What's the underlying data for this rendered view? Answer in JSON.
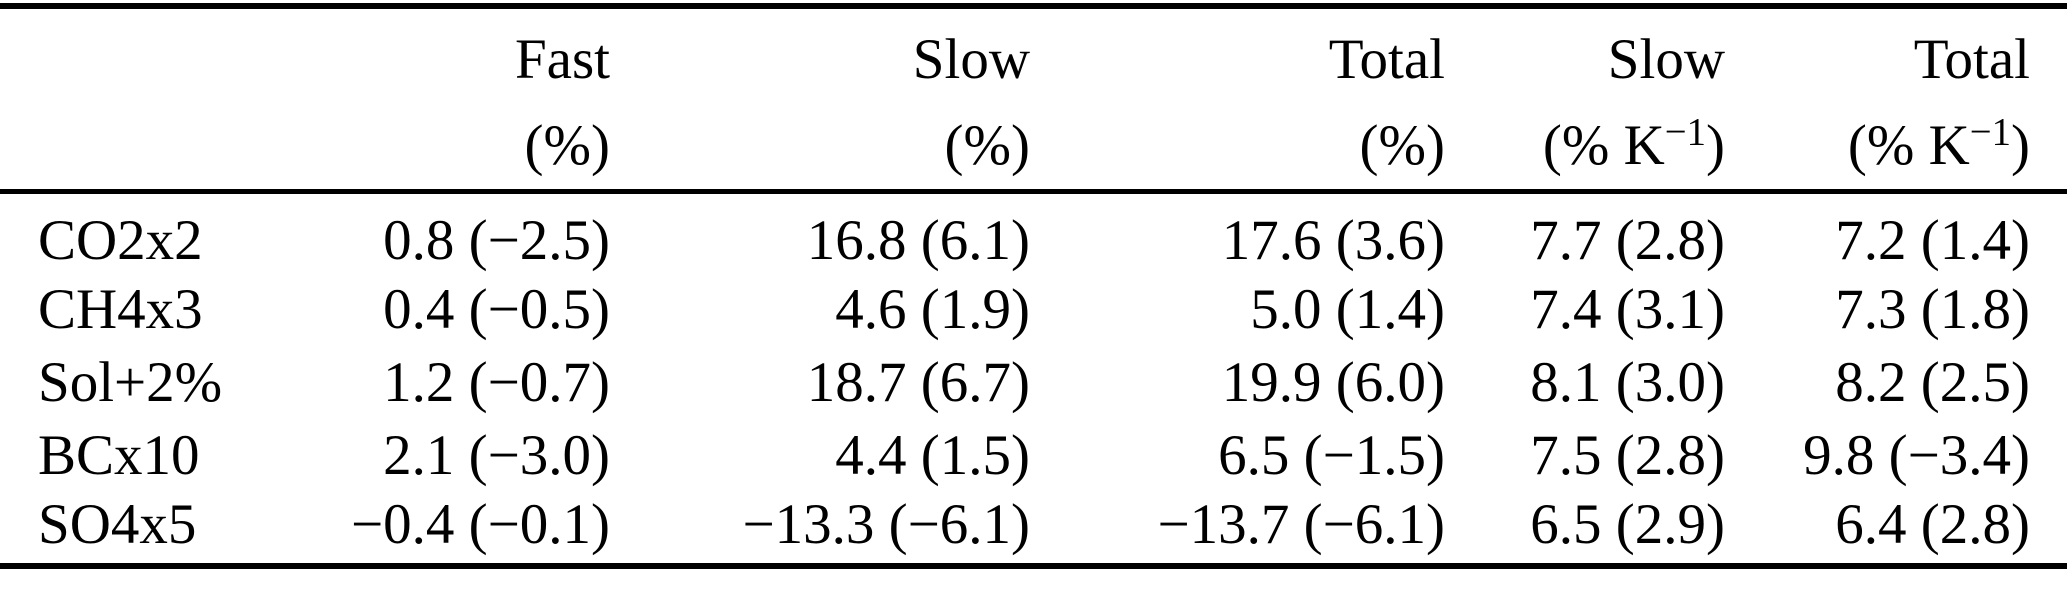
{
  "chart_data": {
    "type": "table",
    "columns": [
      {
        "label": "",
        "unit": ""
      },
      {
        "label": "Fast",
        "unit": "(%)"
      },
      {
        "label": "Slow",
        "unit": "(%)"
      },
      {
        "label": "Total",
        "unit": "(%)"
      },
      {
        "label": "Slow",
        "unit": "(% K⁻¹)"
      },
      {
        "label": "Total",
        "unit": "(% K⁻¹)"
      }
    ],
    "rows": [
      {
        "name": "CO2x2",
        "values": [
          "0.8 (−2.5)",
          "16.8 (6.1)",
          "17.6 (3.6)",
          "7.7 (2.8)",
          "7.2 (1.4)"
        ]
      },
      {
        "name": "CH4x3",
        "values": [
          "0.4 (−0.5)",
          "4.6 (1.9)",
          "5.0 (1.4)",
          "7.4 (3.1)",
          "7.3 (1.8)"
        ]
      },
      {
        "name": "Sol+2%",
        "values": [
          "1.2 (−0.7)",
          "18.7 (6.7)",
          "19.9 (6.0)",
          "8.1 (3.0)",
          "8.2 (2.5)"
        ]
      },
      {
        "name": "BCx10",
        "values": [
          "2.1 (−3.0)",
          "4.4 (1.5)",
          "6.5 (−1.5)",
          "7.5 (2.8)",
          "9.8 (−3.4)"
        ]
      },
      {
        "name": "SO4x5",
        "values": [
          "−0.4 (−0.1)",
          "−13.3 (−6.1)",
          "−13.7 (−6.1)",
          "6.5 (2.9)",
          "6.4 (2.8)"
        ]
      }
    ],
    "colors": {
      "text": "#000000",
      "background": "#ffffff",
      "rule": "#000000"
    },
    "layout": {
      "rules": [
        "top",
        "below-header",
        "bottom"
      ],
      "numeric_alignment": "right"
    }
  }
}
